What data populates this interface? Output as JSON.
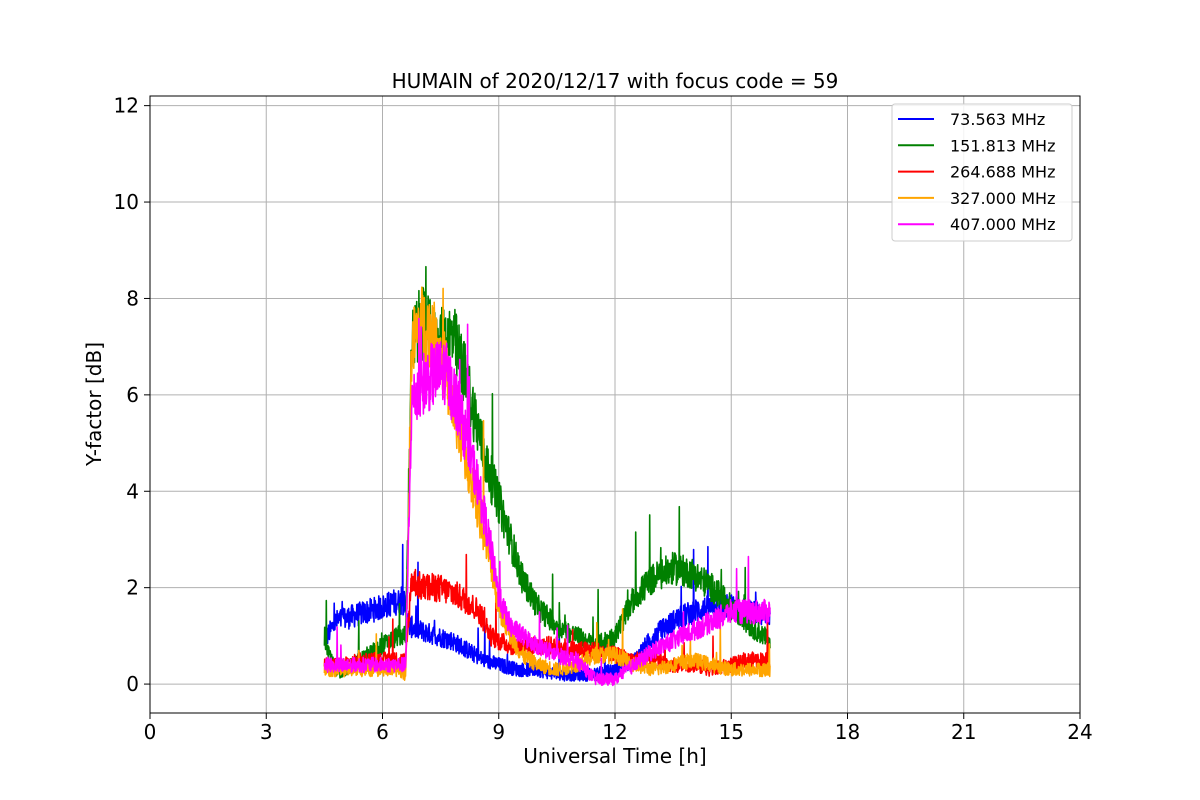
{
  "chart_data": {
    "type": "line",
    "title": "HUMAIN of 2020/12/17 with focus code = 59",
    "xlabel": "Universal Time [h]",
    "ylabel": "Y-factor [dB]",
    "xlim": [
      0,
      24
    ],
    "ylim": [
      -0.6,
      12.2
    ],
    "xticks": [
      0,
      3,
      6,
      9,
      12,
      15,
      18,
      21,
      24
    ],
    "yticks": [
      0,
      2,
      4,
      6,
      8,
      10,
      12
    ],
    "grid": true,
    "legend_position": "top-right",
    "series": [
      {
        "name": " 73.563 MHz",
        "color": "#0000ff",
        "x": [
          4.5,
          4.8,
          5.2,
          5.6,
          6.0,
          6.3,
          6.55,
          6.7,
          7.0,
          7.4,
          7.8,
          8.2,
          8.6,
          9.0,
          9.5,
          10.0,
          10.5,
          11.0,
          11.5,
          12.0,
          12.5,
          13.0,
          13.5,
          14.0,
          14.5,
          15.0,
          15.5,
          16.0
        ],
        "y": [
          0.9,
          1.3,
          1.4,
          1.5,
          1.6,
          1.7,
          1.7,
          1.2,
          1.1,
          1.0,
          0.9,
          0.7,
          0.5,
          0.4,
          0.3,
          0.3,
          0.2,
          0.2,
          0.2,
          0.3,
          0.5,
          1.0,
          1.3,
          1.5,
          1.6,
          1.6,
          1.5,
          1.4
        ]
      },
      {
        "name": "151.813 MHz",
        "color": "#008000",
        "x": [
          4.5,
          4.8,
          5.2,
          5.6,
          6.0,
          6.4,
          6.6,
          6.75,
          7.0,
          7.4,
          7.8,
          8.1,
          8.4,
          8.7,
          9.0,
          9.3,
          9.6,
          10.0,
          10.5,
          11.0,
          11.5,
          12.0,
          12.5,
          13.0,
          13.5,
          14.0,
          14.5,
          15.0,
          15.5,
          16.0
        ],
        "y": [
          1.0,
          0.2,
          0.4,
          0.6,
          0.8,
          1.0,
          1.0,
          7.0,
          7.5,
          7.0,
          7.2,
          6.5,
          5.5,
          4.5,
          3.8,
          3.0,
          2.2,
          1.6,
          1.2,
          1.0,
          0.8,
          1.0,
          1.8,
          2.2,
          2.4,
          2.3,
          2.0,
          1.6,
          1.2,
          0.9
        ]
      },
      {
        "name": "264.688 MHz",
        "color": "#ff0000",
        "x": [
          4.5,
          5.0,
          5.5,
          6.0,
          6.4,
          6.6,
          6.75,
          7.0,
          7.4,
          7.8,
          8.2,
          8.5,
          8.8,
          9.0,
          9.3,
          9.6,
          10.0,
          10.5,
          11.0,
          11.5,
          12.0,
          12.5,
          13.0,
          13.5,
          14.0,
          14.5,
          15.0,
          15.5,
          16.0
        ],
        "y": [
          0.4,
          0.4,
          0.5,
          0.5,
          0.5,
          0.5,
          2.2,
          2.0,
          2.0,
          1.9,
          1.7,
          1.5,
          1.0,
          0.9,
          0.8,
          0.8,
          0.8,
          0.8,
          0.7,
          0.7,
          0.6,
          0.5,
          0.5,
          0.4,
          0.4,
          0.3,
          0.4,
          0.5,
          0.5
        ]
      },
      {
        "name": "327.000 MHz",
        "color": "#ffa500",
        "x": [
          4.5,
          5.0,
          5.5,
          6.0,
          6.4,
          6.6,
          6.75,
          7.0,
          7.3,
          7.6,
          7.9,
          8.2,
          8.5,
          8.8,
          9.0,
          9.3,
          9.6,
          10.0,
          10.5,
          11.0,
          11.5,
          12.0,
          12.5,
          13.0,
          13.5,
          14.0,
          14.5,
          15.0,
          15.5,
          16.0
        ],
        "y": [
          0.3,
          0.3,
          0.3,
          0.3,
          0.3,
          0.2,
          7.0,
          7.5,
          7.3,
          6.6,
          5.5,
          4.5,
          3.5,
          2.5,
          1.6,
          1.0,
          0.6,
          0.4,
          0.3,
          0.4,
          0.6,
          0.6,
          0.4,
          0.3,
          0.4,
          0.5,
          0.4,
          0.3,
          0.3,
          0.3
        ]
      },
      {
        "name": "407.000 MHz",
        "color": "#ff00ff",
        "x": [
          4.5,
          5.0,
          5.5,
          6.0,
          6.4,
          6.6,
          6.75,
          7.0,
          7.3,
          7.6,
          7.9,
          8.2,
          8.5,
          8.8,
          9.0,
          9.3,
          9.6,
          10.0,
          10.5,
          11.0,
          11.5,
          12.0,
          12.5,
          13.0,
          13.5,
          14.0,
          14.5,
          15.0,
          15.5,
          16.0
        ],
        "y": [
          0.4,
          0.4,
          0.4,
          0.4,
          0.4,
          0.4,
          5.8,
          6.2,
          6.4,
          6.5,
          5.9,
          5.0,
          4.0,
          2.8,
          1.8,
          1.2,
          1.0,
          0.8,
          0.6,
          0.5,
          0.1,
          0.1,
          0.4,
          0.7,
          0.9,
          1.1,
          1.3,
          1.5,
          1.5,
          1.5
        ]
      }
    ]
  }
}
